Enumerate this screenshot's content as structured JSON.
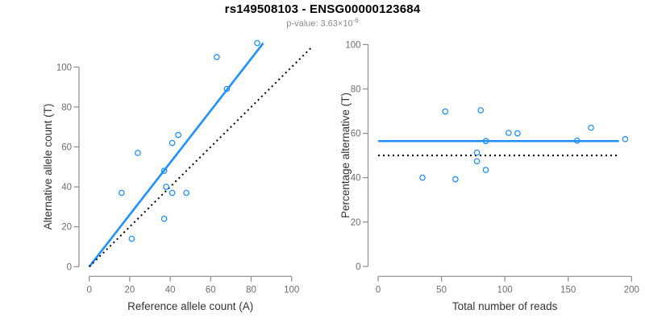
{
  "title": "rs149508103 - ENSG00000123684",
  "subtitle": {
    "prefix": "p-value: 3.63×10",
    "exponent": "-6"
  },
  "accent_color": "#1E90FF",
  "reference_line_color": "#000000",
  "chart_data": [
    {
      "type": "scatter",
      "panel": "left",
      "xlabel": "Reference allele count (A)",
      "ylabel": "Alternative allele count (T)",
      "xlim": [
        0,
        100
      ],
      "ylim": [
        0,
        100
      ],
      "xticks": [
        0,
        20,
        40,
        60,
        80,
        100
      ],
      "yticks": [
        0,
        20,
        40,
        60,
        80,
        100
      ],
      "grid": false,
      "legend": "none",
      "points": [
        [
          16,
          37
        ],
        [
          21,
          14
        ],
        [
          24,
          57
        ],
        [
          37,
          24
        ],
        [
          37,
          48
        ],
        [
          38,
          40
        ],
        [
          41,
          37
        ],
        [
          41,
          62
        ],
        [
          44,
          66
        ],
        [
          48,
          37
        ],
        [
          63,
          105
        ],
        [
          68,
          89
        ],
        [
          83,
          112
        ]
      ],
      "lines": [
        {
          "name": "fit-line",
          "style": "solid",
          "color": "#1E90FF",
          "width": 2.6,
          "slope": 1.3,
          "from": [
            0,
            0
          ],
          "to": [
            86,
            112
          ]
        },
        {
          "name": "identity-line",
          "style": "dotted",
          "color": "#000000",
          "width": 2,
          "slope": 1,
          "from": [
            0,
            0
          ],
          "to": [
            110,
            110
          ]
        }
      ]
    },
    {
      "type": "scatter",
      "panel": "right",
      "xlabel": "Total number of reads",
      "ylabel": "Percentage alternative (T)",
      "xlim": [
        0,
        200
      ],
      "ylim": [
        0,
        100
      ],
      "xticks": [
        0,
        50,
        100,
        150,
        200
      ],
      "yticks": [
        0,
        20,
        40,
        60,
        80,
        100
      ],
      "grid": false,
      "legend": "none",
      "points": [
        [
          35,
          40
        ],
        [
          53,
          69.8
        ],
        [
          61,
          39.3
        ],
        [
          78,
          47.4
        ],
        [
          78,
          51.3
        ],
        [
          81,
          70.4
        ],
        [
          85,
          43.5
        ],
        [
          85,
          56.5
        ],
        [
          103,
          60.2
        ],
        [
          110,
          60
        ],
        [
          157,
          56.7
        ],
        [
          168,
          62.5
        ],
        [
          195,
          57.4
        ]
      ],
      "lines": [
        {
          "name": "mean-line",
          "style": "solid",
          "color": "#1E90FF",
          "width": 2.6,
          "level": 56.5,
          "from": [
            0,
            56.5
          ],
          "to": [
            190,
            56.5
          ]
        },
        {
          "name": "reference-line",
          "style": "dotted",
          "color": "#000000",
          "width": 2,
          "level": 50,
          "from": [
            0,
            50
          ],
          "to": [
            190,
            50
          ]
        }
      ]
    }
  ]
}
